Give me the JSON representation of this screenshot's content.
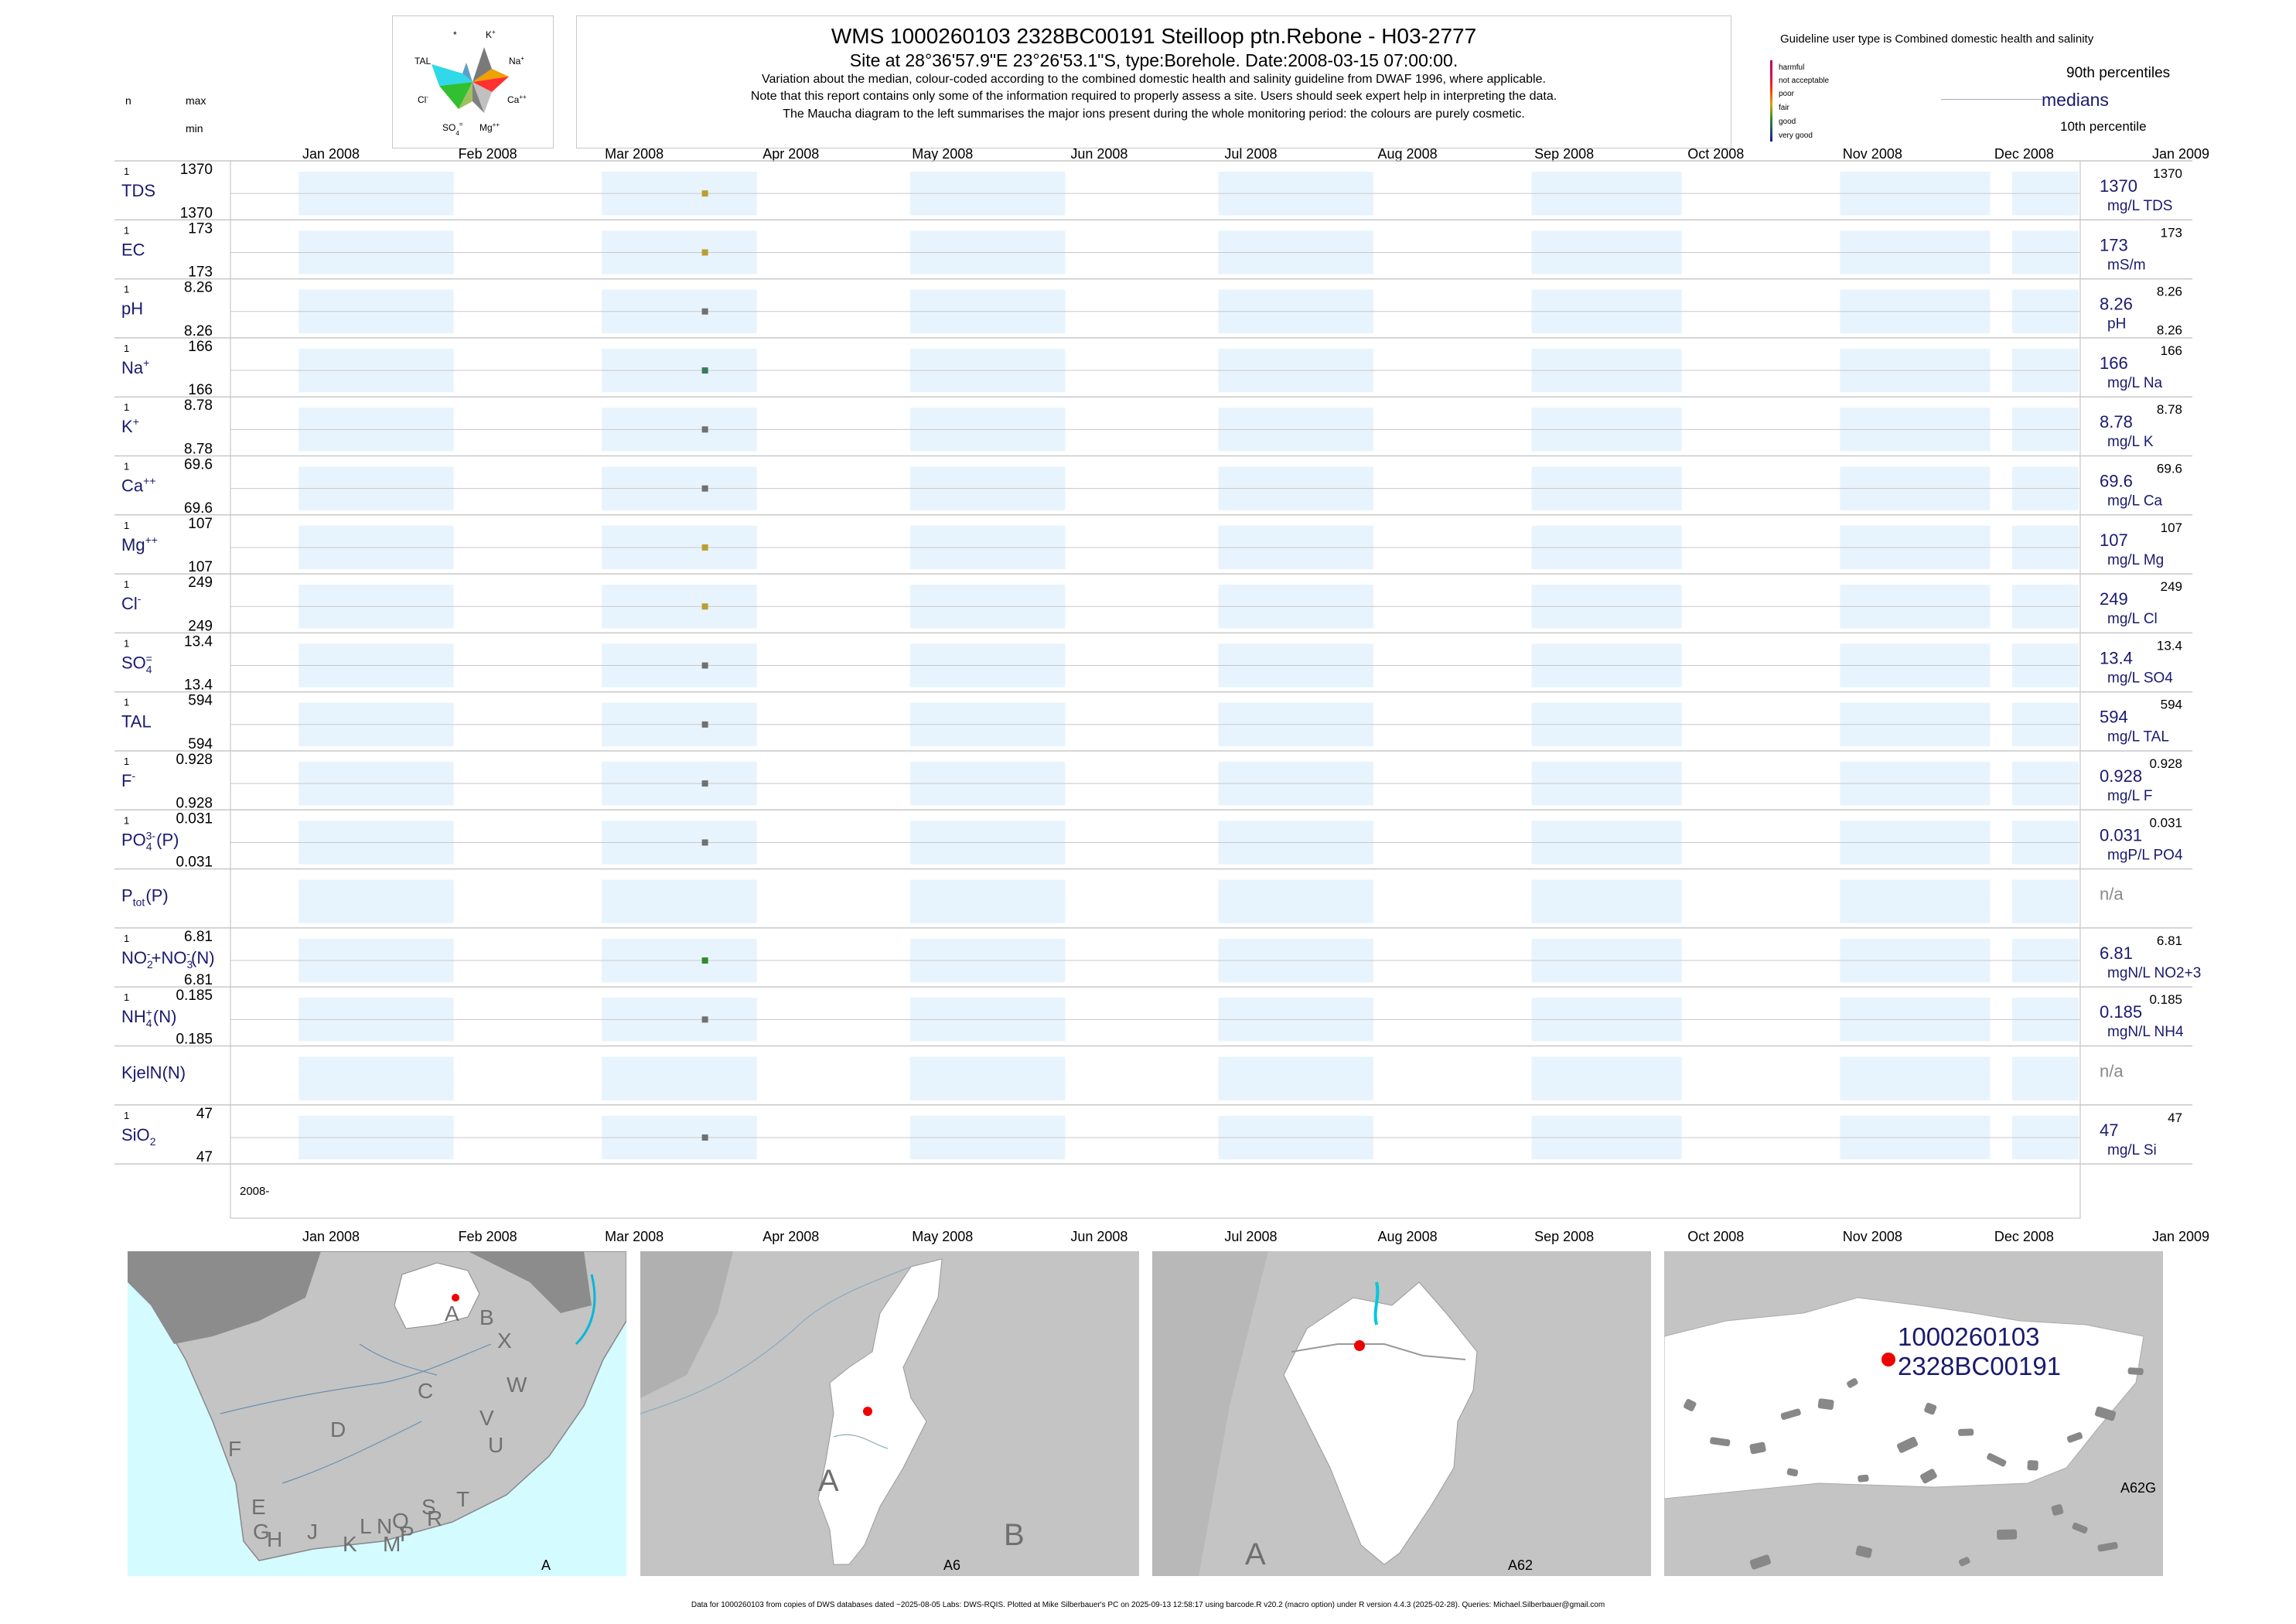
{
  "header": {
    "title": "WMS 1000260103 2328BC00191 Steilloop ptn.Rebone - H03-2777",
    "site": "Site at 28°36'57.9\"E 23°26'53.1\"S, type:Borehole. Date:2008-03-15 07:00:00.",
    "note1": "Variation about the median,  colour-coded according to the combined domestic health and salinity guideline from DWAF 1996, where applicable.",
    "note2": "Note that this report contains only some of the information required to properly assess a site. Users should seek expert help in interpreting the data.",
    "note3": "The Maucha diagram to the left summarises the major ions present during the whole monitoring period: the colours are purely cosmetic.",
    "col_n": "n",
    "col_max": "max",
    "col_min": "min"
  },
  "maucha": {
    "labels": {
      "star": "*",
      "k": "K",
      "na": "Na",
      "ca": "Ca",
      "mg": "Mg",
      "so4": "SO",
      "cl": "Cl",
      "tal": "TAL"
    },
    "sup": {
      "k": "+",
      "na": "+",
      "ca": "++",
      "mg": "++",
      "so4": "=",
      "cl": "-"
    },
    "sub": {
      "so4": "4"
    }
  },
  "legend": {
    "guideline_title": "Guideline user type is Combined domestic health and salinity",
    "classes": [
      "harmful",
      "not acceptable",
      "poor",
      "fair",
      "good",
      "very good"
    ],
    "class_colors": [
      "#b0006a",
      "#d9005a",
      "#ff3300",
      "#e0a000",
      "#2e8b2e",
      "#1a1a9e"
    ],
    "p90": "90th percentiles",
    "medians": "medians",
    "p10": "10th percentile"
  },
  "axis": {
    "months": [
      "Jan 2008",
      "Feb 2008",
      "Mar 2008",
      "Apr 2008",
      "May 2008",
      "Jun 2008",
      "Jul 2008",
      "Aug 2008",
      "Sep 2008",
      "Oct 2008",
      "Nov 2008",
      "Dec 2008",
      "Jan 2009"
    ],
    "year_label": "2008-"
  },
  "chart_data": {
    "type": "scatter",
    "x_range": [
      "2008-01-01",
      "2009-01-01"
    ],
    "sample_date": "2008-03-15",
    "series": [
      {
        "name": "TDS",
        "sup": "",
        "sub": "",
        "n": "1",
        "max": "1370",
        "min": "1370",
        "value": 1370,
        "median_label": "1370",
        "unit": "mg/L TDS",
        "p90": "1370",
        "p10": "",
        "color": "#b8a030"
      },
      {
        "name": "EC",
        "sup": "",
        "sub": "",
        "n": "1",
        "max": "173",
        "min": "173",
        "value": 173,
        "median_label": "173",
        "unit": "mS/m",
        "p90": "173",
        "p10": "",
        "color": "#b8a030"
      },
      {
        "name": "pH",
        "sup": "",
        "sub": "",
        "n": "1",
        "max": "8.26",
        "min": "8.26",
        "value": 8.26,
        "median_label": "8.26",
        "unit": "pH",
        "p90": "8.26",
        "p10": "8.26",
        "color": "#707070"
      },
      {
        "name": "Na",
        "sup": "+",
        "sub": "",
        "n": "1",
        "max": "166",
        "min": "166",
        "value": 166,
        "median_label": "166",
        "unit": "mg/L Na",
        "p90": "166",
        "p10": "",
        "color": "#3a7a5a"
      },
      {
        "name": "K",
        "sup": "+",
        "sub": "",
        "n": "1",
        "max": "8.78",
        "min": "8.78",
        "value": 8.78,
        "median_label": "8.78",
        "unit": "mg/L K",
        "p90": "8.78",
        "p10": "",
        "color": "#707070"
      },
      {
        "name": "Ca",
        "sup": "++",
        "sub": "",
        "n": "1",
        "max": "69.6",
        "min": "69.6",
        "value": 69.6,
        "median_label": "69.6",
        "unit": "mg/L Ca",
        "p90": "69.6",
        "p10": "",
        "color": "#707070"
      },
      {
        "name": "Mg",
        "sup": "++",
        "sub": "",
        "n": "1",
        "max": "107",
        "min": "107",
        "value": 107,
        "median_label": "107",
        "unit": "mg/L Mg",
        "p90": "107",
        "p10": "",
        "color": "#b8a030"
      },
      {
        "name": "Cl",
        "sup": "-",
        "sub": "",
        "n": "1",
        "max": "249",
        "min": "249",
        "value": 249,
        "median_label": "249",
        "unit": "mg/L Cl",
        "p90": "249",
        "p10": "",
        "color": "#b8a030"
      },
      {
        "name": "SO",
        "sup": "=",
        "sub": "4",
        "n": "1",
        "max": "13.4",
        "min": "13.4",
        "value": 13.4,
        "median_label": "13.4",
        "unit": "mg/L SO4",
        "p90": "13.4",
        "p10": "",
        "color": "#707070"
      },
      {
        "name": "TAL",
        "sup": "",
        "sub": "",
        "n": "1",
        "max": "594",
        "min": "594",
        "value": 594,
        "median_label": "594",
        "unit": "mg/L TAL",
        "p90": "594",
        "p10": "",
        "color": "#707070"
      },
      {
        "name": "F",
        "sup": "-",
        "sub": "",
        "n": "1",
        "max": "0.928",
        "min": "0.928",
        "value": 0.928,
        "median_label": "0.928",
        "unit": "mg/L F",
        "p90": "0.928",
        "p10": "",
        "color": "#707070"
      },
      {
        "name": "PO",
        "sup": "3-",
        "sub": "4",
        "tail": "(P)",
        "n": "1",
        "max": "0.031",
        "min": "0.031",
        "value": 0.031,
        "median_label": "0.031",
        "unit": "mgP/L PO4",
        "p90": "0.031",
        "p10": "",
        "color": "#707070"
      },
      {
        "name": "P",
        "sup": "",
        "sub": "tot",
        "tail": "(P)",
        "n": "",
        "max": "",
        "min": "",
        "value": null,
        "median_label": "n/a",
        "unit": "",
        "p90": "",
        "p10": "",
        "color": "#707070"
      },
      {
        "name": "NO",
        "sup": "-",
        "sub": "2",
        "tail": "+NO",
        "sup2": "-",
        "sub2": "3",
        "tail2": "(N)",
        "n": "1",
        "max": "6.81",
        "min": "6.81",
        "value": 6.81,
        "median_label": "6.81",
        "unit": "mgN/L NO2+3",
        "p90": "6.81",
        "p10": "",
        "color": "#2e8b2e"
      },
      {
        "name": "NH",
        "sup": "+",
        "sub": "4",
        "tail": "(N)",
        "n": "1",
        "max": "0.185",
        "min": "0.185",
        "value": 0.185,
        "median_label": "0.185",
        "unit": "mgN/L NH4",
        "p90": "0.185",
        "p10": "",
        "color": "#707070"
      },
      {
        "name": "KjelN(N)",
        "sup": "",
        "sub": "",
        "n": "",
        "max": "",
        "min": "",
        "value": null,
        "median_label": "n/a",
        "unit": "",
        "p90": "",
        "p10": "",
        "color": "#707070"
      },
      {
        "name": "SiO",
        "sup": "",
        "sub": "2",
        "n": "1",
        "max": "47",
        "min": "47",
        "value": 47,
        "median_label": "47",
        "unit": "mg/L Si",
        "p90": "47",
        "p10": "",
        "color": "#707070"
      }
    ]
  },
  "maps": {
    "map1": {
      "corner": "A",
      "regions": [
        "A",
        "B",
        "X",
        "W",
        "C",
        "D",
        "V",
        "U",
        "F",
        "T",
        "E",
        "S",
        "L",
        "N",
        "Q",
        "R",
        "G",
        "H",
        "J",
        "K",
        "M",
        "P"
      ]
    },
    "map2": {
      "corner": "A6",
      "regions": [
        "A",
        "B"
      ]
    },
    "map3": {
      "corner": "A62",
      "regions": [
        "A"
      ]
    },
    "map4": {
      "corner": "A62G",
      "site_id1": "1000260103",
      "site_id2": "2328BC00191"
    }
  },
  "footer": "Data for 1000260103 from copies of DWS databases dated ~2025-08-05 Labs: DWS-RQIS. Plotted at Mike Silberbauer's PC on 2025-09-13 12:58:17 using barcode.R v20.2 (macro option) under R version 4.4.3 (2025-02-28). Queries: Michael.Silberbauer@gmail.com"
}
